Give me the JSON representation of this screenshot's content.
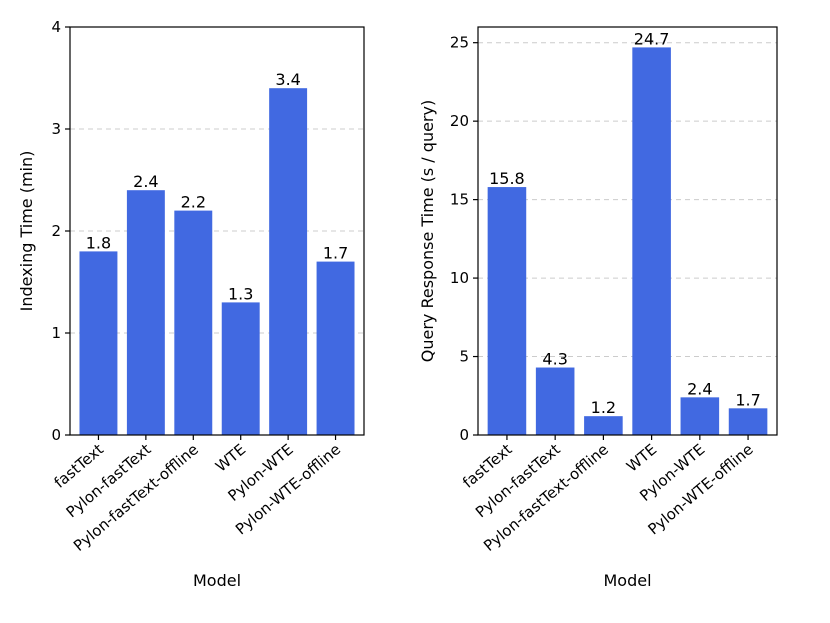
{
  "chart_data": [
    {
      "type": "bar",
      "categories": [
        "fastText",
        "Pylon-fastText",
        "Pylon-fastText-offline",
        "WTE",
        "Pylon-WTE",
        "Pylon-WTE-offline"
      ],
      "values": [
        1.8,
        2.4,
        2.2,
        1.3,
        3.4,
        1.7
      ],
      "value_labels": [
        "1.8",
        "2.4",
        "2.2",
        "1.3",
        "3.4",
        "1.7"
      ],
      "xlabel": "Model",
      "ylabel": "Indexing Time (min)",
      "ylim": [
        0,
        4
      ],
      "yticks": [
        0,
        1,
        2,
        3,
        4
      ],
      "ytick_labels": [
        "0",
        "1",
        "2",
        "3",
        "4"
      ],
      "grid": "y-dashed",
      "bar_color": "#4169e1"
    },
    {
      "type": "bar",
      "categories": [
        "fastText",
        "Pylon-fastText",
        "Pylon-fastText-offline",
        "WTE",
        "Pylon-WTE",
        "Pylon-WTE-offline"
      ],
      "values": [
        15.8,
        4.3,
        1.2,
        24.7,
        2.4,
        1.7
      ],
      "value_labels": [
        "15.8",
        "4.3",
        "1.2",
        "24.7",
        "2.4",
        "1.7"
      ],
      "xlabel": "Model",
      "ylabel": "Query Response Time (s / query)",
      "ylim": [
        0,
        26
      ],
      "yticks": [
        0,
        5,
        10,
        15,
        20,
        25
      ],
      "ytick_labels": [
        "0",
        "5",
        "10",
        "15",
        "20",
        "25"
      ],
      "grid": "y-dashed",
      "bar_color": "#4169e1"
    }
  ]
}
